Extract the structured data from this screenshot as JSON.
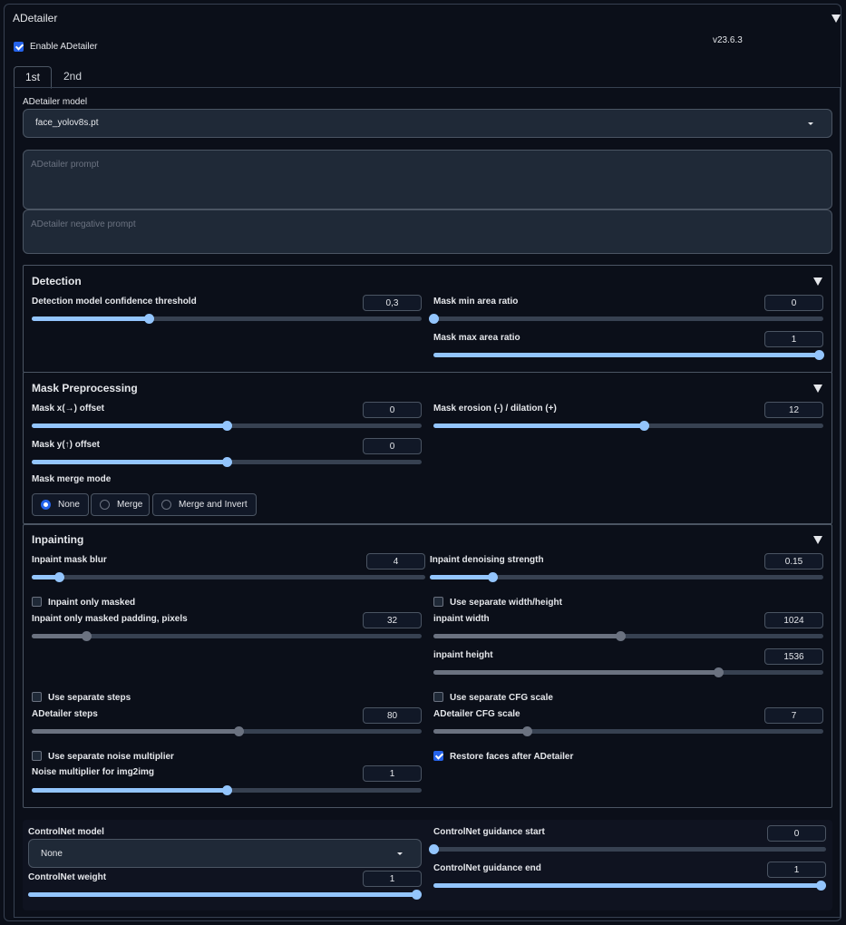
{
  "header": {
    "title": "ADetailer",
    "version": "v23.6.3"
  },
  "enable": {
    "label": "Enable ADetailer",
    "checked": true
  },
  "tabs": [
    {
      "label": "1st",
      "active": true
    },
    {
      "label": "2nd",
      "active": false
    }
  ],
  "model": {
    "label": "ADetailer model",
    "value": "face_yolov8s.pt"
  },
  "prompt": {
    "placeholder": "ADetailer prompt"
  },
  "negative_prompt": {
    "placeholder": "ADetailer negative prompt"
  },
  "detection": {
    "title": "Detection",
    "confidence": {
      "label": "Detection model confidence threshold",
      "value": "0,3",
      "level": 0.3
    },
    "mask_min": {
      "label": "Mask min area ratio",
      "value": "0",
      "level": 0.0
    },
    "mask_max": {
      "label": "Mask max area ratio",
      "value": "1",
      "level": 1.0
    }
  },
  "mask_pre": {
    "title": "Mask Preprocessing",
    "x_offset": {
      "label": "Mask x(→) offset",
      "value": "0",
      "level": 0.5
    },
    "y_offset": {
      "label": "Mask y(↑) offset",
      "value": "0",
      "level": 0.5
    },
    "erosion": {
      "label": "Mask erosion (-) / dilation (+)",
      "value": "12",
      "level": 0.54
    },
    "merge_mode": {
      "label": "Mask merge mode",
      "options": [
        "None",
        "Merge",
        "Merge and Invert"
      ],
      "selected": "None"
    }
  },
  "inpainting": {
    "title": "Inpainting",
    "mask_blur": {
      "label": "Inpaint mask blur",
      "value": "4",
      "level": 0.07
    },
    "denoise": {
      "label": "Inpaint denoising strength",
      "value": "0.15",
      "level": 0.16
    },
    "only_masked": {
      "label": "Inpaint only masked",
      "checked": false
    },
    "padding": {
      "label": "Inpaint only masked padding, pixels",
      "value": "32",
      "level": 0.14
    },
    "sep_wh": {
      "label": "Use separate width/height",
      "checked": false
    },
    "width": {
      "label": "inpaint width",
      "value": "1024",
      "level": 0.48
    },
    "height": {
      "label": "inpaint height",
      "value": "1536",
      "level": 0.73
    },
    "sep_steps": {
      "label": "Use separate steps",
      "checked": false
    },
    "steps": {
      "label": "ADetailer steps",
      "value": "80",
      "level": 0.53
    },
    "sep_cfg": {
      "label": "Use separate CFG scale",
      "checked": false
    },
    "cfg": {
      "label": "ADetailer CFG scale",
      "value": "7",
      "level": 0.24
    },
    "sep_noise": {
      "label": "Use separate noise multiplier",
      "checked": false
    },
    "noise": {
      "label": "Noise multiplier for img2img",
      "value": "1",
      "level": 0.5
    },
    "restore_faces": {
      "label": "Restore faces after ADetailer",
      "checked": true
    }
  },
  "controlnet": {
    "model": {
      "label": "ControlNet model",
      "value": "None"
    },
    "weight": {
      "label": "ControlNet weight",
      "value": "1",
      "level": 1.0
    },
    "guidance_start": {
      "label": "ControlNet guidance start",
      "value": "0",
      "level": 0.0
    },
    "guidance_end": {
      "label": "ControlNet guidance end",
      "value": "1",
      "level": 1.0
    }
  },
  "colors": {
    "accent": "#93c5fd",
    "checkbox": "#2563eb",
    "background": "#0b0f19"
  }
}
